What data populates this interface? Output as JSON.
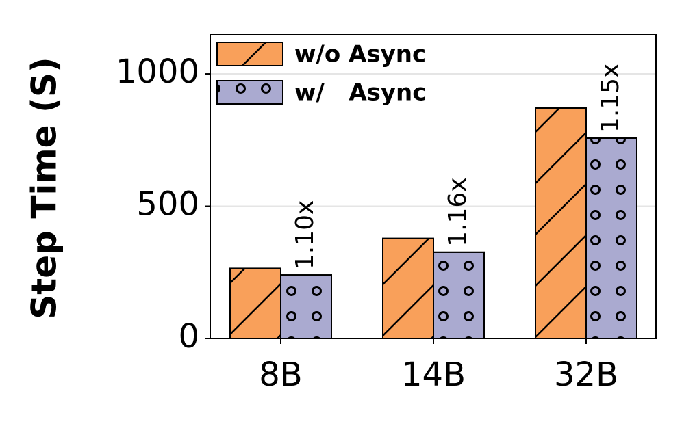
{
  "chart_data": {
    "type": "bar",
    "y_label": "Step Time (S)",
    "categories": [
      "8B",
      "14B",
      "32B"
    ],
    "series": [
      {
        "name": "w/o Async",
        "color": "#f9a05a",
        "hatch": "diagonal",
        "values": [
          265,
          378,
          871
        ]
      },
      {
        "name": "w/   Async",
        "color": "#aaaad0",
        "hatch": "circles",
        "values": [
          240,
          326,
          757
        ]
      }
    ],
    "annotations": [
      "1.10x",
      "1.16x",
      "1.15x"
    ],
    "ylim": [
      0,
      1150
    ],
    "yticks": [
      0,
      500,
      1000
    ],
    "grid": true,
    "legend": "upper left"
  }
}
